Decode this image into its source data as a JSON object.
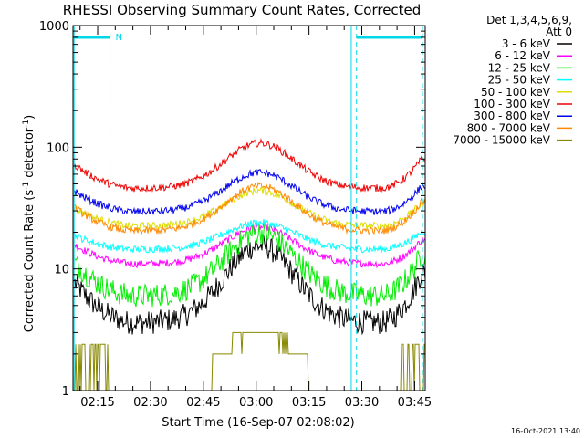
{
  "chart_data": {
    "type": "line",
    "title": "RHESSI Observing Summary Count Rates, Corrected",
    "xlabel": "Start Time (16-Sep-07 02:08:02)",
    "ylabel_main": "Corrected Count Rate (s",
    "ylabel_sup1": "-1",
    "ylabel_mid": " detector",
    "ylabel_sup2": "-1",
    "ylabel_end": ")",
    "ylog": true,
    "ylim": [
      1,
      1000
    ],
    "xlim_minutes": [
      128,
      228
    ],
    "x_ticks": [
      {
        "label": "02:15",
        "minute": 135
      },
      {
        "label": "02:30",
        "minute": 150
      },
      {
        "label": "02:45",
        "minute": 165
      },
      {
        "label": "03:00",
        "minute": 180
      },
      {
        "label": "03:15",
        "minute": 195
      },
      {
        "label": "03:30",
        "minute": 210
      },
      {
        "label": "03:45",
        "minute": 225
      }
    ],
    "y_ticks": [
      {
        "label": "1",
        "value": 1
      },
      {
        "label": "10",
        "value": 10
      },
      {
        "label": "100",
        "value": 100
      },
      {
        "label": "1000",
        "value": 1000
      }
    ],
    "legend_header": [
      "Det 1,3,4,5,6,9,",
      "Att 0"
    ],
    "legend_placement": "right",
    "series": [
      {
        "name": "3 - 6 keV",
        "color": "#000000",
        "night": 3.6,
        "peak": 15.5
      },
      {
        "name": "6 - 12 keV",
        "color": "#ff00ff",
        "night": 11.0,
        "peak": 22.0
      },
      {
        "name": "12 - 25 keV",
        "color": "#00ee00",
        "night": 6.0,
        "peak": 20.0
      },
      {
        "name": "25 - 50 keV",
        "color": "#00ffff",
        "night": 14.5,
        "peak": 24.0
      },
      {
        "name": "50 - 100 keV",
        "color": "#dddd00",
        "night": 22.5,
        "peak": 44.0
      },
      {
        "name": "100 - 300 keV",
        "color": "#ee0000",
        "night": 46.0,
        "peak": 108.0
      },
      {
        "name": "300 - 800 keV",
        "color": "#0000ee",
        "night": 29.5,
        "peak": 62.0
      },
      {
        "name": "800 - 7000 keV",
        "color": "#ff8800",
        "night": 20.5,
        "peak": 48.0
      },
      {
        "name": "7000 - 15000 keV",
        "color": "#888800",
        "night": 1.0,
        "peak": 3.6
      }
    ],
    "saa_lines_minutes": [
      138.5,
      208.5,
      227.2
    ],
    "night_lines_minutes": [
      128.3,
      207.0
    ],
    "flag_bars": [
      {
        "from_minute": 128.3,
        "to_minute": 138.5,
        "label": "N"
      },
      {
        "from_minute": 208.5,
        "to_minute": 227.2,
        "label": ""
      }
    ]
  },
  "footer": {
    "timestamp": "16-Oct-2021 13:40"
  }
}
